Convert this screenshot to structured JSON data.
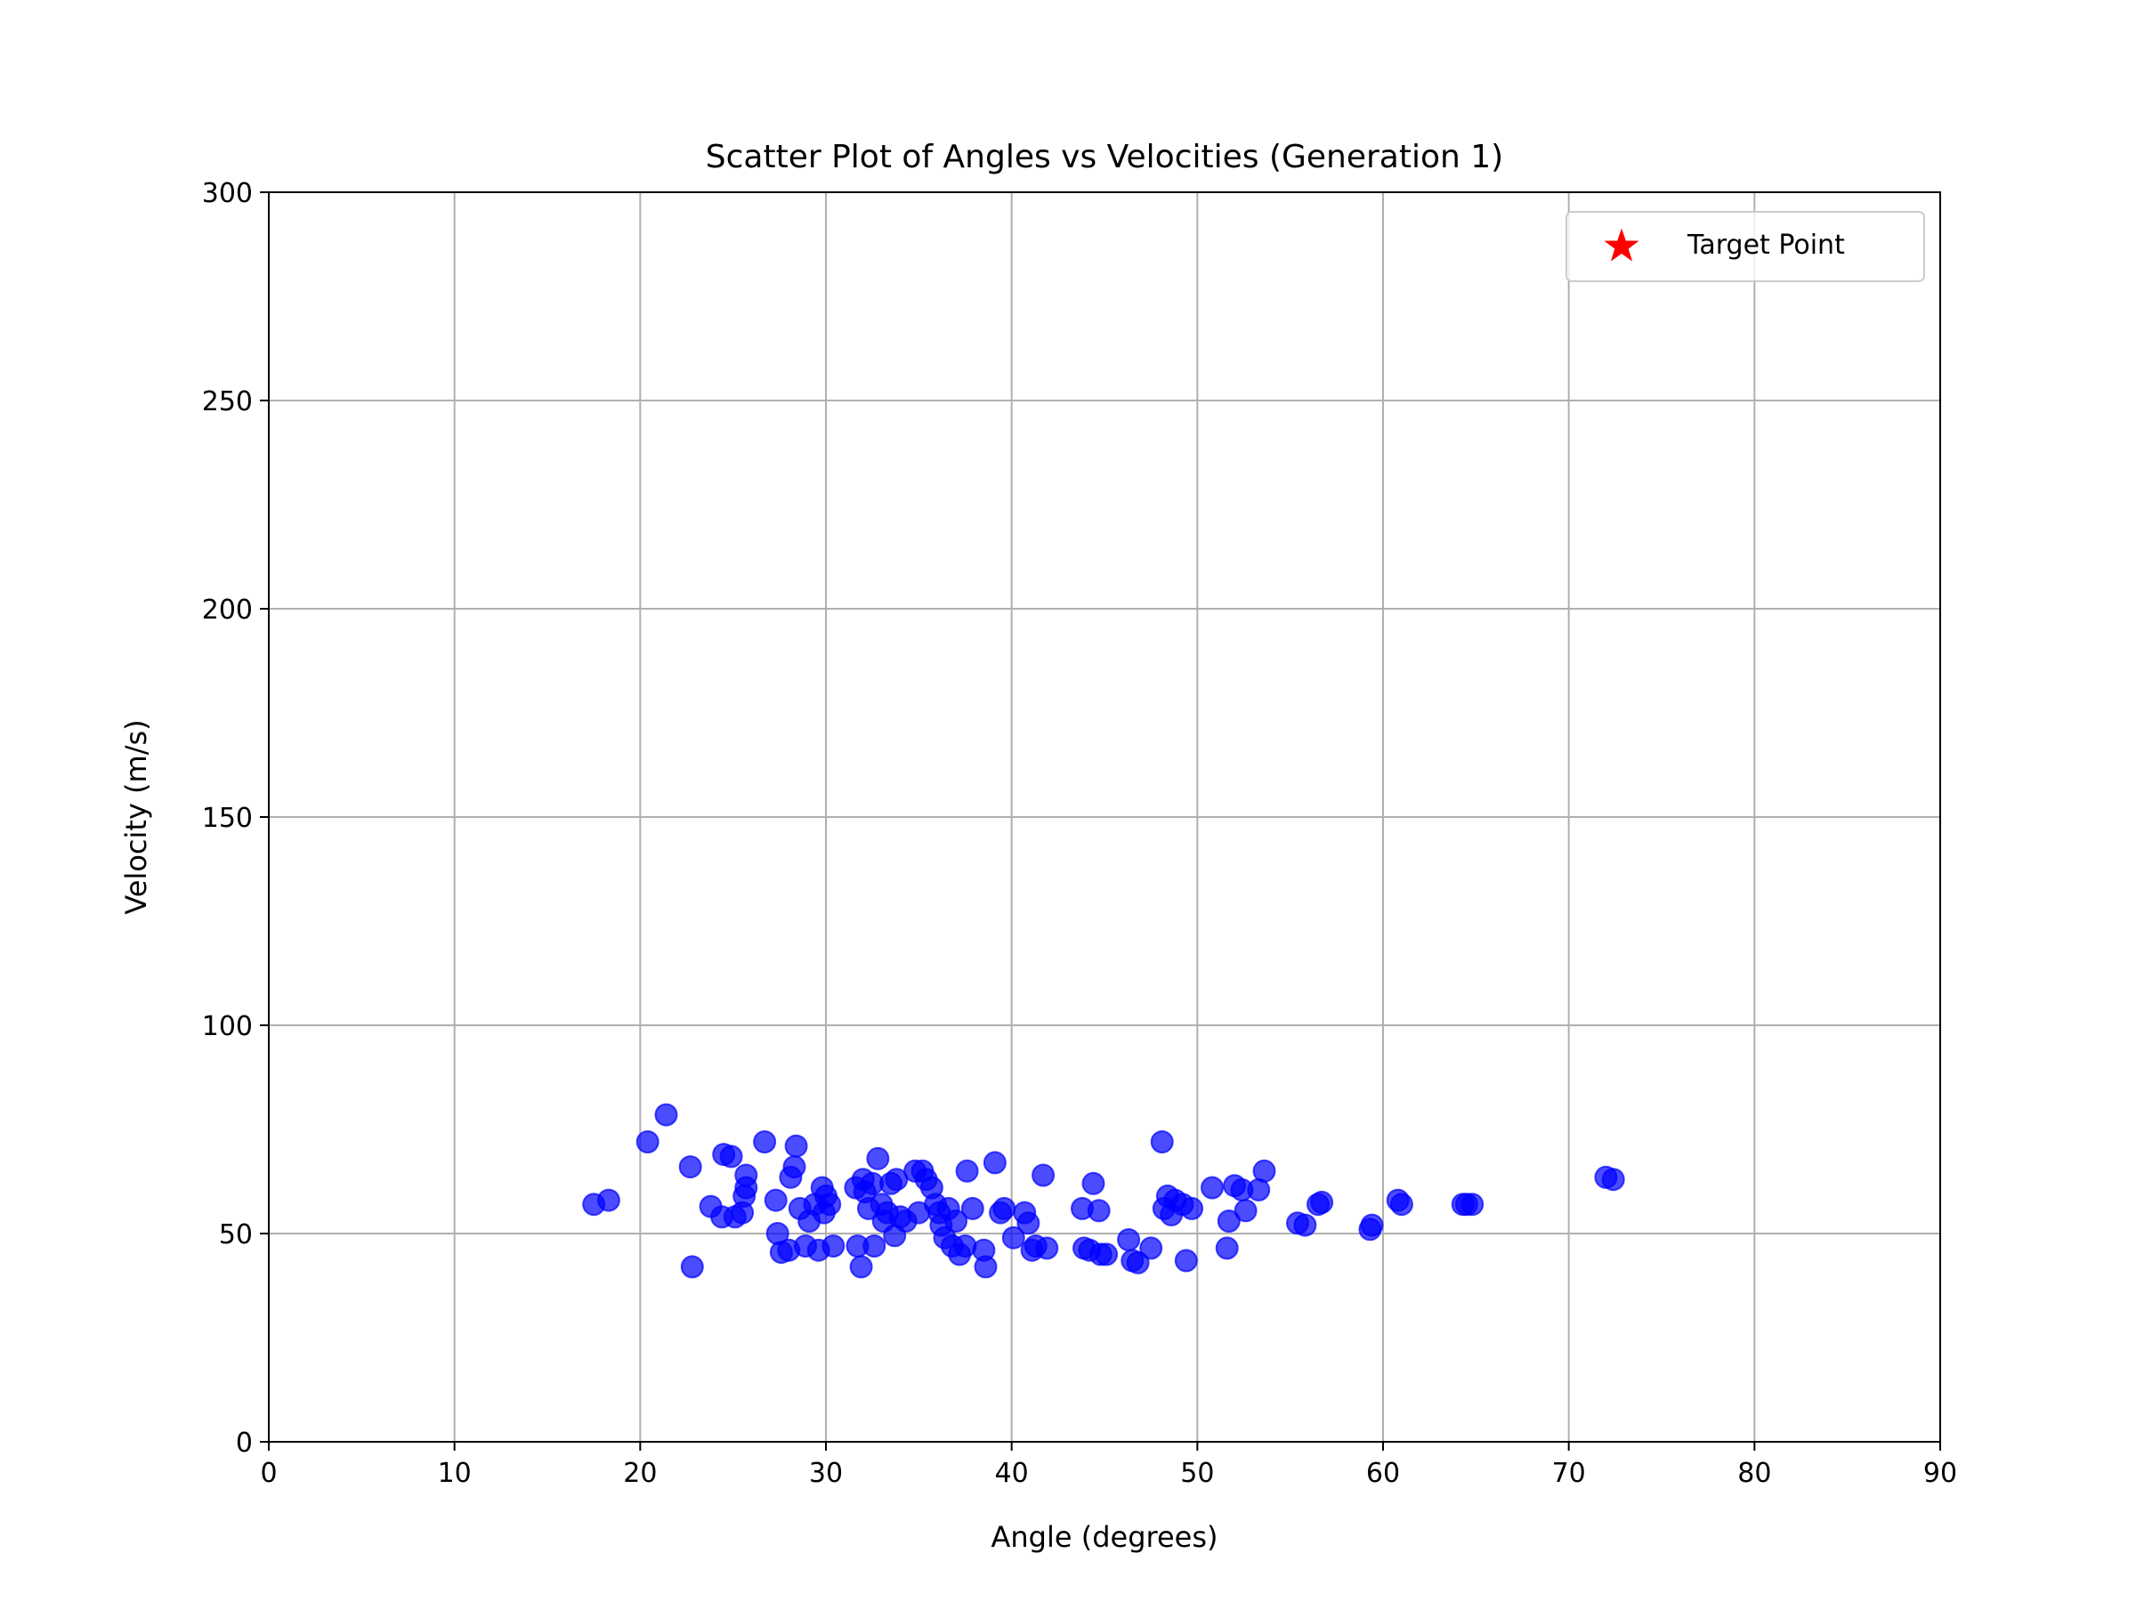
{
  "chart_data": {
    "type": "scatter",
    "title": "Scatter Plot of Angles vs Velocities (Generation 1)",
    "xlabel": "Angle (degrees)",
    "ylabel": "Velocity (m/s)",
    "xlim": [
      0,
      90
    ],
    "ylim": [
      0,
      300
    ],
    "xticks": [
      0,
      10,
      20,
      30,
      40,
      50,
      60,
      70,
      80,
      90
    ],
    "yticks": [
      0,
      50,
      100,
      150,
      200,
      250,
      300
    ],
    "xtick_labels": [
      "0",
      "10",
      "20",
      "30",
      "40",
      "50",
      "60",
      "70",
      "80",
      "90"
    ],
    "ytick_labels": [
      "0",
      "50",
      "100",
      "150",
      "200",
      "250",
      "300"
    ],
    "grid": true,
    "legend": {
      "placement": "top-right",
      "entries": [
        {
          "label": "Target Point",
          "marker": "star",
          "color": "#ff0000"
        }
      ]
    },
    "series": [
      {
        "color": "#0000ff",
        "opacity": 0.7,
        "marker": "circle",
        "points": [
          [
            17.5,
            57
          ],
          [
            18.3,
            58
          ],
          [
            20.4,
            72
          ],
          [
            21.4,
            78.5
          ],
          [
            22.7,
            66
          ],
          [
            22.8,
            42
          ],
          [
            23.8,
            56.5
          ],
          [
            24.4,
            54
          ],
          [
            24.5,
            69
          ],
          [
            24.9,
            68.5
          ],
          [
            25.1,
            54
          ],
          [
            25.5,
            55
          ],
          [
            25.6,
            59
          ],
          [
            25.7,
            61
          ],
          [
            25.7,
            64
          ],
          [
            26.7,
            72
          ],
          [
            27.3,
            58
          ],
          [
            27.4,
            50
          ],
          [
            27.6,
            45.5
          ],
          [
            28.0,
            46
          ],
          [
            28.1,
            63.5
          ],
          [
            28.3,
            66
          ],
          [
            28.4,
            71
          ],
          [
            28.6,
            56
          ],
          [
            28.9,
            47
          ],
          [
            29.1,
            53
          ],
          [
            29.4,
            57
          ],
          [
            29.6,
            46
          ],
          [
            29.8,
            61
          ],
          [
            29.9,
            55
          ],
          [
            30.0,
            59
          ],
          [
            30.2,
            57
          ],
          [
            30.4,
            47
          ],
          [
            31.6,
            61
          ],
          [
            31.7,
            47
          ],
          [
            31.9,
            42
          ],
          [
            32.0,
            63
          ],
          [
            32.1,
            60
          ],
          [
            32.3,
            56
          ],
          [
            32.5,
            62
          ],
          [
            32.6,
            47
          ],
          [
            32.8,
            68
          ],
          [
            33.0,
            57
          ],
          [
            33.1,
            53
          ],
          [
            33.3,
            55
          ],
          [
            33.5,
            62
          ],
          [
            33.7,
            49.5
          ],
          [
            33.8,
            63
          ],
          [
            34.0,
            54
          ],
          [
            34.3,
            53
          ],
          [
            34.8,
            65
          ],
          [
            35.0,
            55
          ],
          [
            35.2,
            65
          ],
          [
            35.4,
            63
          ],
          [
            35.7,
            61
          ],
          [
            35.9,
            57
          ],
          [
            36.1,
            55
          ],
          [
            36.2,
            52
          ],
          [
            36.4,
            49
          ],
          [
            36.6,
            56
          ],
          [
            36.8,
            47
          ],
          [
            37.0,
            53
          ],
          [
            37.2,
            45
          ],
          [
            37.5,
            47
          ],
          [
            37.6,
            65
          ],
          [
            37.9,
            56
          ],
          [
            38.5,
            46
          ],
          [
            38.6,
            42
          ],
          [
            39.1,
            67
          ],
          [
            39.4,
            55
          ],
          [
            39.6,
            56
          ],
          [
            40.1,
            49
          ],
          [
            40.7,
            55
          ],
          [
            40.9,
            52.5
          ],
          [
            41.1,
            46
          ],
          [
            41.3,
            47
          ],
          [
            41.7,
            64
          ],
          [
            41.9,
            46.5
          ],
          [
            43.8,
            56
          ],
          [
            43.9,
            46.5
          ],
          [
            44.2,
            46
          ],
          [
            44.4,
            62
          ],
          [
            44.7,
            55.5
          ],
          [
            44.8,
            45
          ],
          [
            45.1,
            45
          ],
          [
            46.3,
            48.5
          ],
          [
            46.5,
            43.5
          ],
          [
            46.8,
            43
          ],
          [
            47.5,
            46.5
          ],
          [
            48.1,
            72
          ],
          [
            48.2,
            56
          ],
          [
            48.4,
            59
          ],
          [
            48.6,
            54.5
          ],
          [
            48.8,
            58
          ],
          [
            49.2,
            57
          ],
          [
            49.4,
            43.5
          ],
          [
            49.7,
            56
          ],
          [
            50.8,
            61
          ],
          [
            51.6,
            46.5
          ],
          [
            51.7,
            53
          ],
          [
            52.0,
            61.5
          ],
          [
            52.4,
            60.5
          ],
          [
            52.6,
            55.5
          ],
          [
            53.3,
            60.5
          ],
          [
            53.6,
            65
          ],
          [
            55.4,
            52.5
          ],
          [
            55.8,
            52
          ],
          [
            56.5,
            57
          ],
          [
            56.7,
            57.5
          ],
          [
            59.3,
            51
          ],
          [
            59.4,
            52
          ],
          [
            60.8,
            58
          ],
          [
            61.0,
            57
          ],
          [
            64.3,
            57
          ],
          [
            64.5,
            57
          ],
          [
            64.8,
            57
          ],
          [
            72.0,
            63.5
          ],
          [
            72.4,
            63
          ]
        ]
      }
    ]
  }
}
